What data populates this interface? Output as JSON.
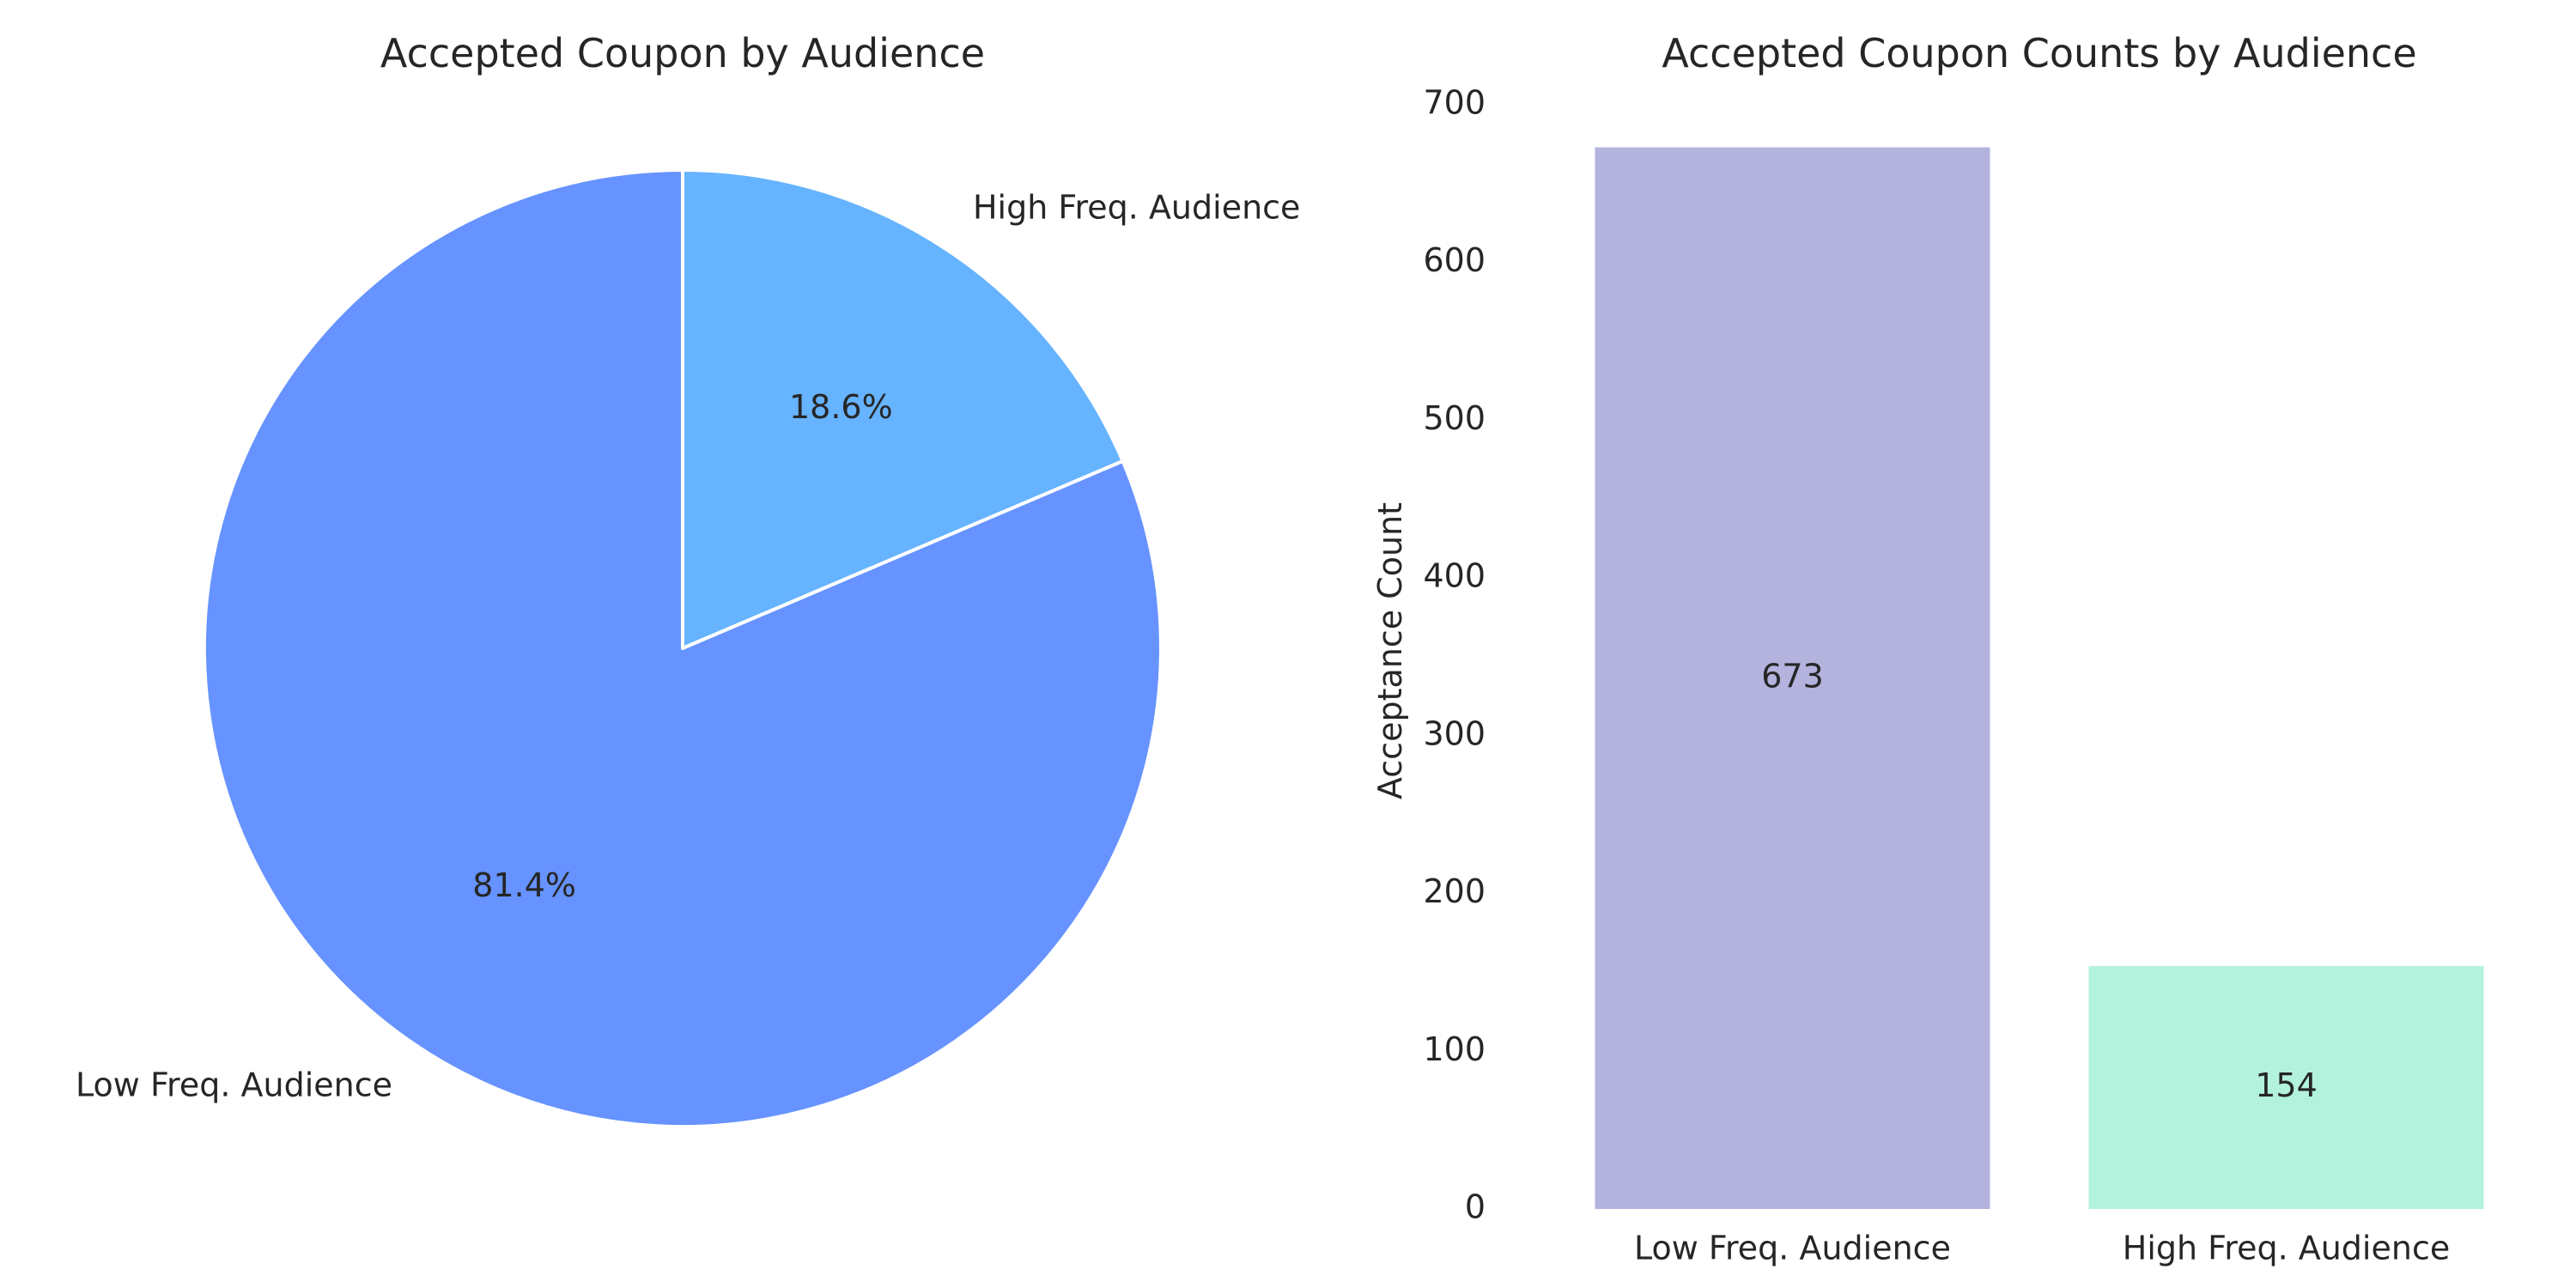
{
  "chart_data": [
    {
      "type": "pie",
      "title": "Accepted Coupon by Audience",
      "labels": [
        "High Freq. Audience",
        "Low Freq. Audience"
      ],
      "values": [
        18.6,
        81.4
      ],
      "percent_labels": [
        "18.6%",
        "81.4%"
      ],
      "colors": [
        "#66b3ff",
        "#6693ff"
      ],
      "start_angle_deg": 90,
      "direction": "clockwise"
    },
    {
      "type": "bar",
      "title": "Accepted Coupon Counts by Audience",
      "xlabel": "",
      "ylabel": "Acceptance Count",
      "categories": [
        "Low Freq. Audience",
        "High Freq. Audience"
      ],
      "values": [
        673,
        154
      ],
      "value_labels": [
        "673",
        "154"
      ],
      "colors": [
        "#b3b3de",
        "#b3f2dd"
      ],
      "ylim": [
        0,
        700
      ],
      "yticks": [
        "0",
        "100",
        "200",
        "300",
        "400",
        "500",
        "600",
        "700"
      ],
      "grid": false
    }
  ]
}
